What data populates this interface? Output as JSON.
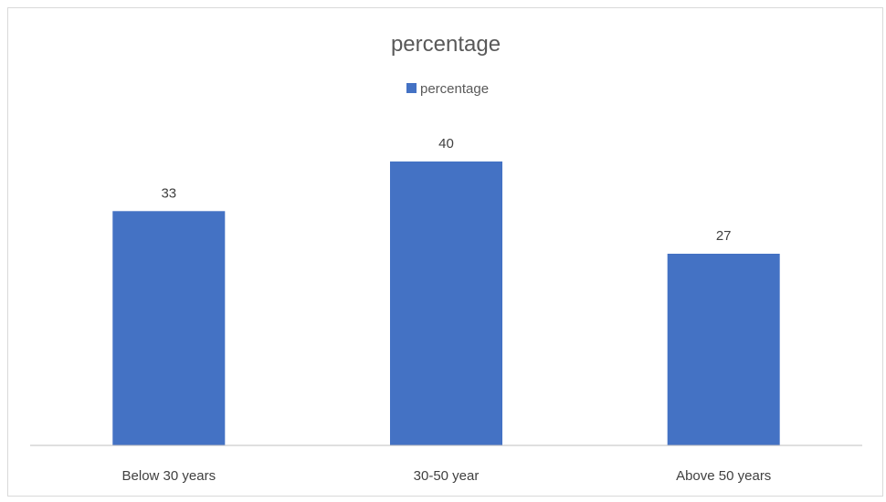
{
  "chart_data": {
    "type": "bar",
    "title": "percentage",
    "categories": [
      "Below 30 years",
      "30-50 year",
      "Above 50 years"
    ],
    "series": [
      {
        "name": "percentage",
        "values": [
          33,
          40,
          27
        ],
        "color": "#4472C4"
      }
    ],
    "data_labels": [
      "33",
      "40",
      "27"
    ],
    "ylim": [
      0,
      45
    ],
    "legend": "top",
    "grid": false,
    "axis_color": "#bfbfbf"
  }
}
